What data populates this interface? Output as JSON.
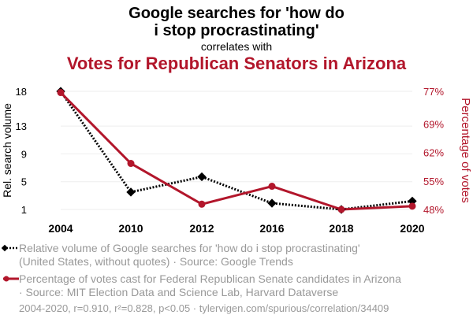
{
  "header": {
    "title_line1": "Google searches for 'how do",
    "title_line2": "i stop procrastinating'",
    "subtitle": "correlates with",
    "title2": "Votes for Republican Senators in Arizona"
  },
  "chart_data": {
    "type": "line",
    "categories": [
      "2004",
      "2010",
      "2012",
      "2016",
      "2018",
      "2020"
    ],
    "series": [
      {
        "name": "Relative volume of Google searches for 'how do i stop procrastinating' (United States, without quotes)",
        "axis": "left",
        "color": "#000000",
        "style": "dotted",
        "marker": "diamond",
        "values": [
          18,
          3.5,
          5.7,
          1.9,
          1.0,
          2.2
        ]
      },
      {
        "name": "Percentage of votes cast for Federal Republican Senate candidates in Arizona",
        "axis": "right",
        "color": "#b2162b",
        "style": "solid",
        "marker": "circle",
        "values": [
          76.7,
          59.3,
          49.3,
          53.7,
          48.0,
          48.8
        ]
      }
    ],
    "left_axis": {
      "label": "Rel. search volume",
      "ticks": [
        "18",
        "13",
        "9",
        "5",
        "1"
      ],
      "tick_values": [
        18,
        13,
        9,
        5,
        1
      ],
      "range": [
        1,
        18
      ]
    },
    "right_axis": {
      "label": "Percentage of votes",
      "ticks": [
        "77%",
        "69%",
        "62%",
        "55%",
        "48%"
      ],
      "tick_values": [
        77,
        69,
        62,
        55,
        48
      ],
      "range": [
        48,
        77
      ]
    }
  },
  "legend": {
    "item1_line1": "Relative volume of Google searches for 'how do i stop procrastinating'",
    "item1_line2": "(United States, without quotes) · Source: Google Trends",
    "item2_line1": "Percentage of votes cast for Federal Republican Senate candidates in Arizona",
    "item2_line2": "· Source: MIT Election Data and Science Lab, Harvard Dataverse"
  },
  "footer": "2004-2020, r=0.910, r²=0.828, p<0.05 · tylervigen.com/spurious/correlation/34409",
  "colors": {
    "red": "#b2162b",
    "black": "#000000",
    "grid": "#eeeeee",
    "muted": "#999999"
  }
}
